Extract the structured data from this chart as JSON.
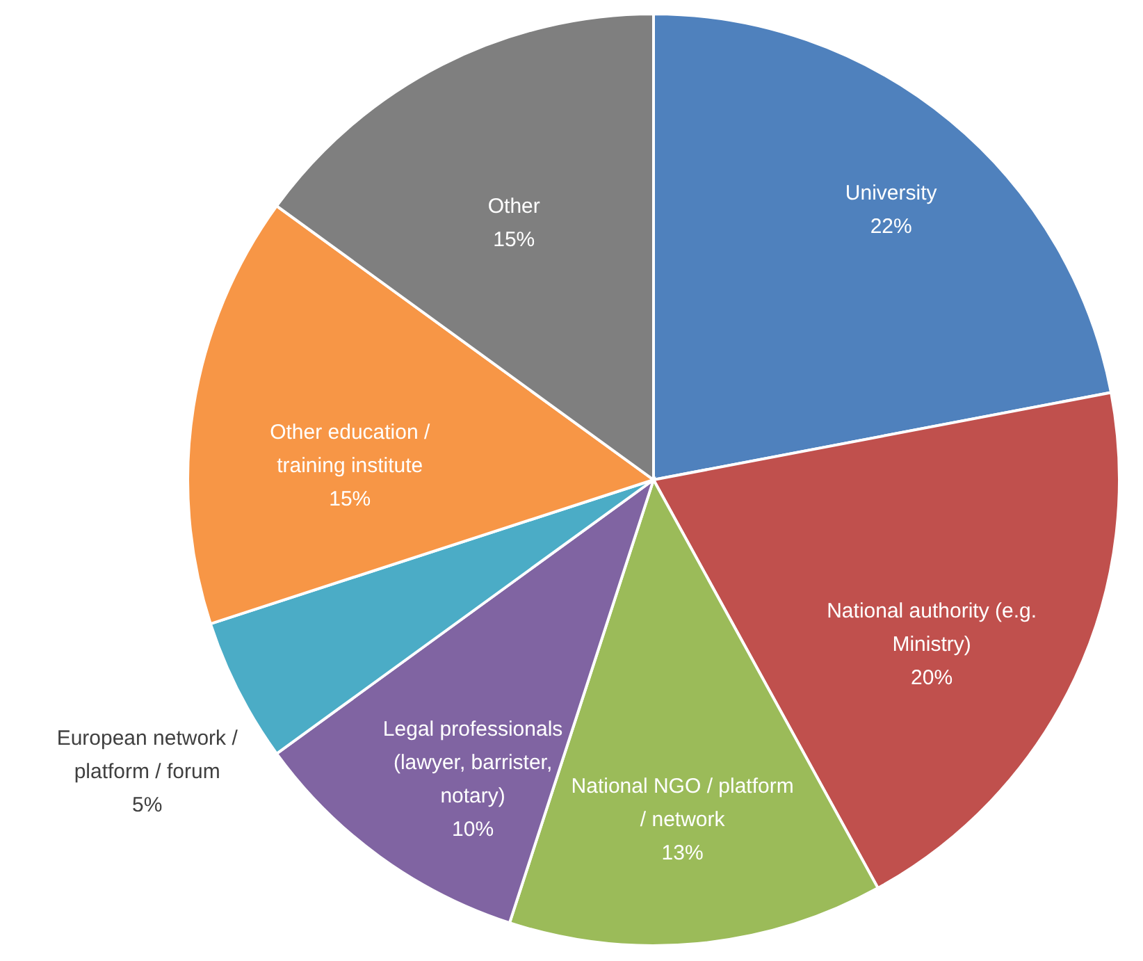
{
  "chart_data": {
    "type": "pie",
    "categories": [
      "University",
      "National authority (e.g. Ministry)",
      "National NGO / platform / network",
      "Legal professionals (lawyer, barrister, notary)",
      "European network / platform / forum",
      "Other education / training institute",
      "Other"
    ],
    "values": [
      22,
      20,
      13,
      10,
      5,
      15,
      15
    ],
    "value_labels": [
      "22%",
      "20%",
      "13%",
      "10%",
      "5%",
      "15%",
      "15%"
    ],
    "colors": [
      "#4f81bd",
      "#c0504d",
      "#9bbb59",
      "#8064a2",
      "#4bacc6",
      "#f79646",
      "#7f7f7f"
    ]
  }
}
